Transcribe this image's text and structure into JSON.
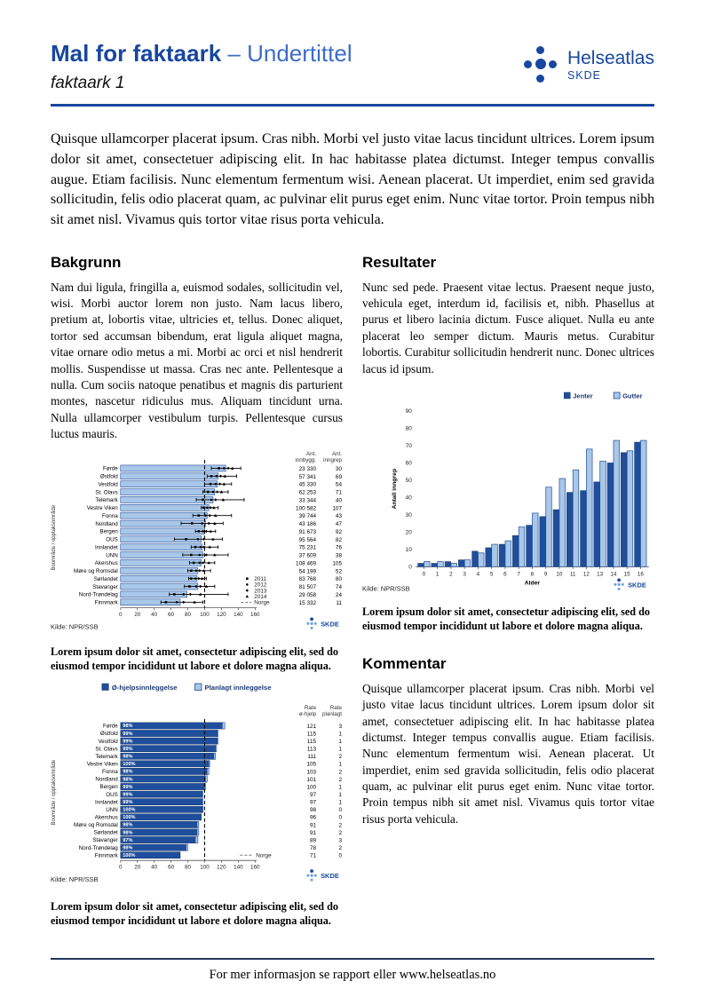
{
  "header": {
    "title": "Mal for faktaark",
    "title_suffix": "– Undertittel",
    "subtitle": "faktaark 1",
    "logo_name": "Helseatlas",
    "logo_sub": "SKDE"
  },
  "intro": "Quisque ullamcorper placerat ipsum. Cras nibh. Morbi vel justo vitae lacus tincidunt ultrices. Lorem ipsum dolor sit amet, consectetuer adipiscing elit. In hac habitasse platea dictumst. Integer tempus convallis augue. Etiam facilisis. Nunc elementum fermentum wisi. Aenean placerat. Ut imperdiet, enim sed gravida sollicitudin, felis odio placerat quam, ac pulvinar elit purus eget enim. Nunc vitae tortor. Proin tempus nibh sit amet nisl. Vivamus quis tortor vitae risus porta vehicula.",
  "sections": {
    "bakgrunn": {
      "heading": "Bakgrunn",
      "body": "Nam dui ligula, fringilla a, euismod sodales, sollicitudin vel, wisi. Morbi auctor lorem non justo. Nam lacus libero, pretium at, lobortis vitae, ultricies et, tellus. Donec aliquet, tortor sed accumsan bibendum, erat ligula aliquet magna, vitae ornare odio metus a mi. Morbi ac orci et nisl hendrerit mollis. Suspendisse ut massa. Cras nec ante. Pellentesque a nulla. Cum sociis natoque penatibus et magnis dis parturient montes, nascetur ridiculus mus. Aliquam tincidunt urna. Nulla ullamcorper vestibulum turpis. Pellentesque cursus luctus mauris."
    },
    "resultater": {
      "heading": "Resultater",
      "body": "Nunc sed pede. Praesent vitae lectus. Praesent neque justo, vehicula eget, interdum id, facilisis et, nibh. Phasellus at purus et libero lacinia dictum. Fusce aliquet. Nulla eu ante placerat leo semper dictum. Mauris metus. Curabitur lobortis. Curabitur sollicitudin hendrerit nunc. Donec ultrices lacus id ipsum."
    },
    "kommentar": {
      "heading": "Kommentar",
      "body": "Quisque ullamcorper placerat ipsum. Cras nibh. Morbi vel justo vitae lacus tincidunt ultrices. Lorem ipsum dolor sit amet, consectetuer adipiscing elit. In hac habitasse platea dictumst. Integer tempus convallis augue. Etiam facilisis. Nunc elementum fermentum wisi. Aenean placerat. Ut imperdiet, enim sed gravida sollicitudin, felis odio placerat quam, ac pulvinar elit purus eget enim. Nunc vitae tortor. Proin tempus nibh sit amet nisl. Vivamus quis tortor vitae risus porta vehicula."
    }
  },
  "captions": {
    "chart1": "Lorem ipsum dolor sit amet, consectetur adipiscing elit, sed do eiusmod tempor incididunt ut labore et dolore magna aliqua.",
    "chart2": "Lorem ipsum dolor sit amet, consectetur adipiscing elit, sed do eiusmod tempor incididunt ut labore et dolore magna aliqua.",
    "chart3": "Lorem ipsum dolor sit amet, consectetur adipiscing elit, sed do eiusmod tempor incididunt ut labore et dolore magna aliqua."
  },
  "footer": "For mer informasjon se rapport eller www.helseatlas.no",
  "skde_label": "SKDE",
  "colors": {
    "dark": "#1f4e9c",
    "light": "#a9c7e8",
    "blue": "#17479e",
    "axis": "#555",
    "navy": "#1b3a75"
  },
  "chart_data": [
    {
      "id": "chart1",
      "type": "bar",
      "orientation": "horizontal",
      "ylabel": "Boområde / opptaksområde",
      "xlim": [
        0,
        160
      ],
      "xticks": [
        0,
        20,
        40,
        60,
        80,
        100,
        120,
        140,
        160
      ],
      "reference_line": {
        "label": "Norge",
        "value": 100
      },
      "legend": [
        "2011",
        "2012",
        "2013",
        "2014",
        "Norge"
      ],
      "legend_markers": [
        "square-marker",
        "circle-marker",
        "diamond-marker",
        "triangle-marker",
        "dashed-line"
      ],
      "col_headers": [
        [
          "Ant.",
          "innbygg."
        ],
        [
          "Ant.",
          "inngrep"
        ]
      ],
      "source": "Kilde: NPR/SSB",
      "rows": [
        {
          "label": "Førde",
          "rate": 125,
          "ci": [
            108,
            143
          ],
          "years": [
            117,
            123,
            128,
            133
          ],
          "innbygg": "23 330",
          "inngrep": 30
        },
        {
          "label": "Østfold",
          "rate": 116,
          "ci": [
            103,
            138
          ],
          "years": [
            108,
            114,
            119,
            124
          ],
          "innbygg": "57 341",
          "inngrep": 69
        },
        {
          "label": "Vestfold",
          "rate": 115,
          "ci": [
            100,
            132
          ],
          "years": [
            107,
            113,
            118,
            123
          ],
          "innbygg": "45 330",
          "inngrep": 54
        },
        {
          "label": "St. Olavs",
          "rate": 112,
          "ci": [
            98,
            128
          ],
          "years": [
            104,
            110,
            115,
            120
          ],
          "innbygg": "62 253",
          "inngrep": 71
        },
        {
          "label": "Telemark",
          "rate": 110,
          "ci": [
            90,
            147
          ],
          "years": [
            98,
            108,
            113,
            122
          ],
          "innbygg": "33 344",
          "inngrep": 40
        },
        {
          "label": "Vestre Viken",
          "rate": 105,
          "ci": [
            96,
            116
          ],
          "years": [
            99,
            103,
            107,
            111
          ],
          "innbygg": "100 582",
          "inngrep": 107
        },
        {
          "label": "Fonna",
          "rate": 103,
          "ci": [
            86,
            132
          ],
          "years": [
            93,
            101,
            106,
            113
          ],
          "innbygg": "39 744",
          "inngrep": 43
        },
        {
          "label": "Nordland",
          "rate": 101,
          "ci": [
            72,
            122
          ],
          "years": [
            85,
            97,
            105,
            112
          ],
          "innbygg": "43 186",
          "inngrep": 47
        },
        {
          "label": "Bergen",
          "rate": 100,
          "ci": [
            89,
            113
          ],
          "years": [
            93,
            98,
            102,
            107
          ],
          "innbygg": "91 673",
          "inngrep": 92
        },
        {
          "label": "OUS",
          "rate": 96,
          "ci": [
            64,
            121
          ],
          "years": [
            78,
            92,
            99,
            110
          ],
          "innbygg": "95 564",
          "inngrep": 82
        },
        {
          "label": "Innlandet",
          "rate": 97,
          "ci": [
            84,
            116
          ],
          "years": [
            89,
            95,
            99,
            106
          ],
          "innbygg": "75 231",
          "inngrep": 76
        },
        {
          "label": "UNN",
          "rate": 98,
          "ci": [
            74,
            128
          ],
          "years": [
            84,
            94,
            102,
            112
          ],
          "innbygg": "37 609",
          "inngrep": 38
        },
        {
          "label": "Akershus",
          "rate": 96,
          "ci": [
            82,
            112
          ],
          "years": [
            87,
            94,
            98,
            105
          ],
          "innbygg": "108 469",
          "inngrep": 105
        },
        {
          "label": "Møre og Romsdal",
          "rate": 92,
          "ci": [
            80,
            107
          ],
          "years": [
            84,
            90,
            94,
            99
          ],
          "innbygg": "54 199",
          "inngrep": 52
        },
        {
          "label": "Sørlandet",
          "rate": 91,
          "ci": [
            81,
            102
          ],
          "years": [
            84,
            89,
            93,
            97
          ],
          "innbygg": "83 768",
          "inngrep": 80
        },
        {
          "label": "Stavanger",
          "rate": 92,
          "ci": [
            76,
            112
          ],
          "years": [
            82,
            90,
            95,
            102
          ],
          "innbygg": "81 507",
          "inngrep": 74
        },
        {
          "label": "Nord-Trøndelag",
          "rate": 79,
          "ci": [
            58,
            128
          ],
          "years": [
            64,
            75,
            83,
            95
          ],
          "innbygg": "29 058",
          "inngrep": 24
        },
        {
          "label": "Finnmark",
          "rate": 71,
          "ci": [
            48,
            98
          ],
          "years": [
            54,
            67,
            75,
            88
          ],
          "innbygg": "15 332",
          "inngrep": 11
        }
      ]
    },
    {
      "id": "chart2",
      "type": "bar",
      "orientation": "vertical",
      "grouped": true,
      "xlabel": "Alder",
      "ylabel": "Antall inngrep",
      "ylim": [
        0,
        90
      ],
      "yticks": [
        0,
        10,
        20,
        30,
        40,
        50,
        60,
        70,
        80,
        90
      ],
      "categories": [
        0,
        1,
        2,
        3,
        4,
        5,
        6,
        7,
        8,
        9,
        10,
        11,
        12,
        13,
        14,
        15,
        16
      ],
      "series": [
        {
          "name": "Jenter",
          "values": [
            2,
            2,
            3,
            4,
            9,
            11,
            13,
            18,
            24,
            29,
            33,
            43,
            44,
            49,
            60,
            66,
            72
          ]
        },
        {
          "name": "Gutter",
          "values": [
            3,
            3,
            2,
            4,
            8,
            13,
            15,
            23,
            31,
            46,
            51,
            56,
            68,
            61,
            73,
            67,
            73
          ]
        }
      ],
      "legend_position": "top-right",
      "source": "Kilde: NPR/SSB"
    },
    {
      "id": "chart3",
      "type": "bar",
      "orientation": "horizontal",
      "stacked": true,
      "ylabel": "Boområde / opptaksområde",
      "xlim": [
        0,
        160
      ],
      "xticks": [
        0,
        20,
        40,
        60,
        80,
        100,
        120,
        140,
        160
      ],
      "reference_line": {
        "label": "Norge",
        "value": 100
      },
      "legend": [
        "Ø-hjelpsinnleggelse",
        "Planlagt innleggelse"
      ],
      "col_headers": [
        [
          "Rate",
          "ø-hjelp"
        ],
        [
          "Rate",
          "planlagt"
        ]
      ],
      "source": "Kilde: NPR/SSB",
      "rows": [
        {
          "label": "Førde",
          "pct": "98%",
          "rate_ohjelp": 121,
          "rate_planlagt": 3
        },
        {
          "label": "Østfold",
          "pct": "99%",
          "rate_ohjelp": 115,
          "rate_planlagt": 1
        },
        {
          "label": "Vestfold",
          "pct": "99%",
          "rate_ohjelp": 115,
          "rate_planlagt": 1
        },
        {
          "label": "St. Olavs",
          "pct": "99%",
          "rate_ohjelp": 113,
          "rate_planlagt": 1
        },
        {
          "label": "Telemark",
          "pct": "98%",
          "rate_ohjelp": 111,
          "rate_planlagt": 2
        },
        {
          "label": "Vestre Viken",
          "pct": "100%",
          "rate_ohjelp": 105,
          "rate_planlagt": 1
        },
        {
          "label": "Fonna",
          "pct": "98%",
          "rate_ohjelp": 103,
          "rate_planlagt": 2
        },
        {
          "label": "Nordland",
          "pct": "98%",
          "rate_ohjelp": 101,
          "rate_planlagt": 2
        },
        {
          "label": "Bergen",
          "pct": "99%",
          "rate_ohjelp": 100,
          "rate_planlagt": 1
        },
        {
          "label": "OUS",
          "pct": "99%",
          "rate_ohjelp": 97,
          "rate_planlagt": 1
        },
        {
          "label": "Innlandet",
          "pct": "99%",
          "rate_ohjelp": 97,
          "rate_planlagt": 1
        },
        {
          "label": "UNN",
          "pct": "100%",
          "rate_ohjelp": 98,
          "rate_planlagt": 0
        },
        {
          "label": "Akershus",
          "pct": "100%",
          "rate_ohjelp": 96,
          "rate_planlagt": 0
        },
        {
          "label": "Møre og Romsdal",
          "pct": "98%",
          "rate_ohjelp": 91,
          "rate_planlagt": 2
        },
        {
          "label": "Sørlandet",
          "pct": "98%",
          "rate_ohjelp": 91,
          "rate_planlagt": 2
        },
        {
          "label": "Stavanger",
          "pct": "97%",
          "rate_ohjelp": 89,
          "rate_planlagt": 3
        },
        {
          "label": "Nord-Trøndelag",
          "pct": "98%",
          "rate_ohjelp": 78,
          "rate_planlagt": 2
        },
        {
          "label": "Finnmark",
          "pct": "100%",
          "rate_ohjelp": 71,
          "rate_planlagt": 0
        }
      ]
    }
  ]
}
